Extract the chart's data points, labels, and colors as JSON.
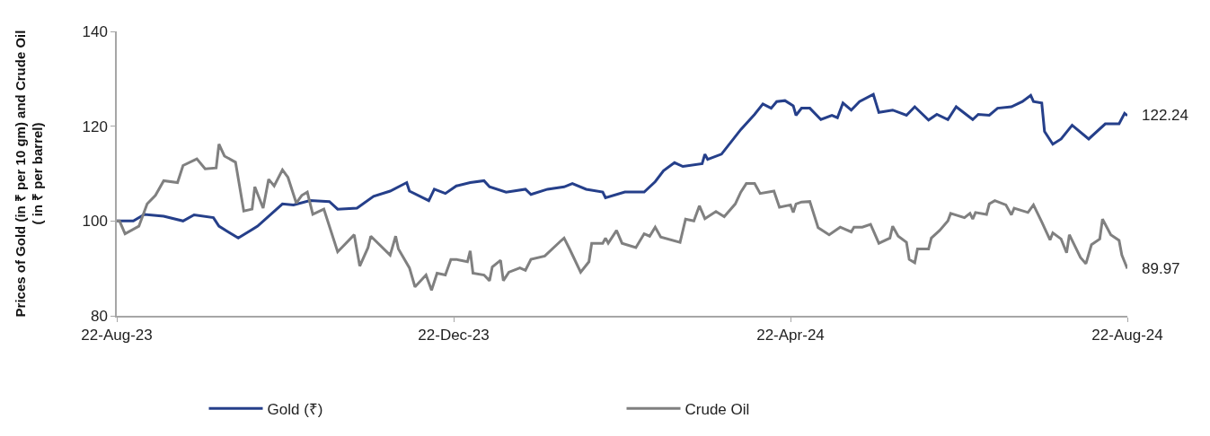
{
  "chart_data": {
    "type": "line",
    "ylabel": "Prices of Gold (in ₹ per 10 gm) and Crude Oil ( in ₹ per barrel)",
    "xlim": [
      "2023-08-22",
      "2024-08-22"
    ],
    "xticks": [
      {
        "value": "2023-08-22",
        "label": "22-Aug-23"
      },
      {
        "value": "2023-12-22",
        "label": "22-Dec-23"
      },
      {
        "value": "2024-04-22",
        "label": "22-Apr-24"
      },
      {
        "value": "2024-08-22",
        "label": "22-Aug-24"
      }
    ],
    "ylim": [
      80,
      140
    ],
    "yticks": [
      80,
      100,
      120,
      140
    ],
    "legend": "bottom",
    "marker": "none",
    "line_style": "solid",
    "annotations": [
      {
        "text": "122.24",
        "x": "2024-08-22",
        "y": 122.24
      },
      {
        "text": "89.97",
        "x": "2024-08-22",
        "y": 89.97
      }
    ],
    "series": [
      {
        "name": "Gold (₹)",
        "color": "#253f8a",
        "x": [
          "2023-08-22",
          "2023-08-23",
          "2023-08-28",
          "2023-09-01",
          "2023-09-08",
          "2023-09-15",
          "2023-09-19",
          "2023-09-26",
          "2023-09-28",
          "2023-10-05",
          "2023-10-12",
          "2023-10-21",
          "2023-10-25",
          "2023-10-31",
          "2023-11-07",
          "2023-11-10",
          "2023-11-17",
          "2023-11-23",
          "2023-11-29",
          "2023-12-05",
          "2023-12-06",
          "2023-12-13",
          "2023-12-15",
          "2023-12-19",
          "2023-12-23",
          "2023-12-28",
          "2024-01-02",
          "2024-01-04",
          "2024-01-10",
          "2024-01-17",
          "2024-01-19",
          "2024-01-25",
          "2024-01-31",
          "2024-02-03",
          "2024-02-08",
          "2024-02-14",
          "2024-02-15",
          "2024-02-22",
          "2024-02-29",
          "2024-03-04",
          "2024-03-07",
          "2024-03-11",
          "2024-03-14",
          "2024-03-21",
          "2024-03-22",
          "2024-03-23",
          "2024-03-28",
          "2024-04-04",
          "2024-04-09",
          "2024-04-12",
          "2024-04-15",
          "2024-04-17",
          "2024-04-20",
          "2024-04-23",
          "2024-04-24",
          "2024-04-26",
          "2024-04-29",
          "2024-05-03",
          "2024-05-07",
          "2024-05-09",
          "2024-05-11",
          "2024-05-14",
          "2024-05-17",
          "2024-05-22",
          "2024-05-24",
          "2024-05-29",
          "2024-06-03",
          "2024-06-06",
          "2024-06-11",
          "2024-06-14",
          "2024-06-18",
          "2024-06-21",
          "2024-06-25",
          "2024-06-27",
          "2024-06-29",
          "2024-07-03",
          "2024-07-06",
          "2024-07-11",
          "2024-07-15",
          "2024-07-18",
          "2024-07-19",
          "2024-07-22",
          "2024-07-23",
          "2024-07-26",
          "2024-07-29",
          "2024-08-02",
          "2024-08-08",
          "2024-08-14",
          "2024-08-19",
          "2024-08-21",
          "2024-08-22"
        ],
        "values": [
          100,
          100,
          100,
          101.4,
          101,
          100,
          101.3,
          100.7,
          98.9,
          96.4,
          98.9,
          103.6,
          103.4,
          104.3,
          104.1,
          102.5,
          102.7,
          105.2,
          106.3,
          108.1,
          106.3,
          104.3,
          106.7,
          105.8,
          107.4,
          108.1,
          108.5,
          107.2,
          106.1,
          106.7,
          105.6,
          106.7,
          107.2,
          107.9,
          106.7,
          106.1,
          104.9,
          106.1,
          106.1,
          108.3,
          110.6,
          112.3,
          111.5,
          112.1,
          114.1,
          113,
          114.1,
          119.3,
          122.5,
          124.7,
          123.8,
          125.2,
          125.4,
          124.3,
          122.3,
          123.8,
          123.8,
          121.4,
          122.3,
          121.8,
          124.9,
          123.4,
          125.2,
          126.7,
          122.9,
          123.4,
          122.3,
          124.1,
          121.3,
          122.5,
          121.4,
          124.1,
          122.3,
          121.4,
          122.5,
          122.3,
          123.8,
          124.1,
          125.2,
          126.5,
          125.2,
          124.9,
          118.9,
          116.2,
          117.3,
          120.2,
          117.3,
          120.5,
          120.5,
          122.7,
          122.24
        ]
      },
      {
        "name": "Crude Oil",
        "color": "#808080",
        "x": [
          "2023-08-22",
          "2023-08-23",
          "2023-08-25",
          "2023-08-30",
          "2023-09-02",
          "2023-09-05",
          "2023-09-08",
          "2023-09-13",
          "2023-09-15",
          "2023-09-20",
          "2023-09-23",
          "2023-09-27",
          "2023-09-28",
          "2023-09-30",
          "2023-10-04",
          "2023-10-07",
          "2023-10-10",
          "2023-10-11",
          "2023-10-14",
          "2023-10-16",
          "2023-10-18",
          "2023-10-21",
          "2023-10-23",
          "2023-10-26",
          "2023-10-28",
          "2023-10-30",
          "2023-11-01",
          "2023-11-05",
          "2023-11-10",
          "2023-11-16",
          "2023-11-18",
          "2023-11-21",
          "2023-11-22",
          "2023-11-29",
          "2023-12-01",
          "2023-12-02",
          "2023-12-06",
          "2023-12-08",
          "2023-12-12",
          "2023-12-14",
          "2023-12-16",
          "2023-12-19",
          "2023-12-21",
          "2023-12-23",
          "2023-12-27",
          "2023-12-28",
          "2023-12-29",
          "2024-01-02",
          "2024-01-04",
          "2024-01-05",
          "2024-01-08",
          "2024-01-09",
          "2024-01-11",
          "2024-01-15",
          "2024-01-17",
          "2024-01-19",
          "2024-01-24",
          "2024-01-30",
          "2024-01-31",
          "2024-02-02",
          "2024-02-06",
          "2024-02-09",
          "2024-02-10",
          "2024-02-14",
          "2024-02-15",
          "2024-02-16",
          "2024-02-19",
          "2024-02-21",
          "2024-02-26",
          "2024-02-29",
          "2024-03-02",
          "2024-03-04",
          "2024-03-06",
          "2024-03-13",
          "2024-03-15",
          "2024-03-18",
          "2024-03-20",
          "2024-03-22",
          "2024-03-26",
          "2024-03-29",
          "2024-04-02",
          "2024-04-04",
          "2024-04-06",
          "2024-04-09",
          "2024-04-11",
          "2024-04-16",
          "2024-04-18",
          "2024-04-22",
          "2024-04-23",
          "2024-04-24",
          "2024-04-26",
          "2024-04-29",
          "2024-05-02",
          "2024-05-06",
          "2024-05-10",
          "2024-05-14",
          "2024-05-15",
          "2024-05-18",
          "2024-05-21",
          "2024-05-24",
          "2024-05-28",
          "2024-05-29",
          "2024-05-31",
          "2024-06-03",
          "2024-06-04",
          "2024-06-06",
          "2024-06-07",
          "2024-06-11",
          "2024-06-12",
          "2024-06-15",
          "2024-06-18",
          "2024-06-19",
          "2024-06-24",
          "2024-06-26",
          "2024-06-27",
          "2024-06-28",
          "2024-07-02",
          "2024-07-03",
          "2024-07-05",
          "2024-07-09",
          "2024-07-11",
          "2024-07-12",
          "2024-07-17",
          "2024-07-19",
          "2024-07-22",
          "2024-07-25",
          "2024-07-26",
          "2024-07-29",
          "2024-07-31",
          "2024-08-01",
          "2024-08-05",
          "2024-08-07",
          "2024-08-09",
          "2024-08-12",
          "2024-08-13",
          "2024-08-16",
          "2024-08-19",
          "2024-08-20",
          "2024-08-22"
        ],
        "values": [
          100,
          100,
          97.3,
          98.9,
          103.6,
          105.4,
          108.5,
          108.1,
          111.7,
          113.1,
          111,
          111.2,
          116.2,
          113.7,
          112.4,
          102.1,
          102.5,
          107.2,
          102.7,
          108.8,
          107.4,
          110.8,
          109.2,
          103.8,
          105.4,
          106.1,
          101.4,
          102.5,
          93.5,
          97.1,
          90.5,
          94.4,
          96.8,
          92.8,
          96.8,
          94.1,
          90.1,
          86.1,
          88.6,
          85.4,
          89,
          88.6,
          91.9,
          91.9,
          91.4,
          93.7,
          89,
          88.6,
          87.4,
          90.3,
          91.7,
          87.4,
          89.2,
          90.1,
          89.6,
          91.9,
          92.6,
          95.9,
          96.4,
          94.1,
          89.2,
          91.4,
          95.3,
          95.3,
          96.4,
          95.3,
          98,
          95.3,
          94.4,
          97.3,
          96.8,
          98.7,
          96.6,
          95.5,
          100.4,
          100,
          103.2,
          100.5,
          102,
          100.9,
          103.6,
          106.1,
          107.9,
          107.9,
          105.8,
          106.3,
          102.9,
          103.4,
          101.8,
          103.6,
          104,
          104.1,
          98.6,
          97.1,
          98.7,
          97.7,
          98.7,
          98.7,
          99.3,
          95.3,
          96.4,
          98.9,
          96.8,
          95.5,
          91.9,
          91.2,
          94.1,
          94.1,
          96.4,
          98,
          100,
          101.6,
          100.7,
          101.6,
          100.4,
          101.8,
          101.4,
          103.6,
          104.3,
          103.4,
          101.3,
          102.7,
          101.8,
          103.4,
          99.8,
          96,
          97.5,
          96.2,
          93.3,
          97.1,
          92.3,
          91,
          95,
          96.2,
          100.4,
          97.1,
          95.9,
          92.8,
          89.97
        ]
      }
    ]
  }
}
